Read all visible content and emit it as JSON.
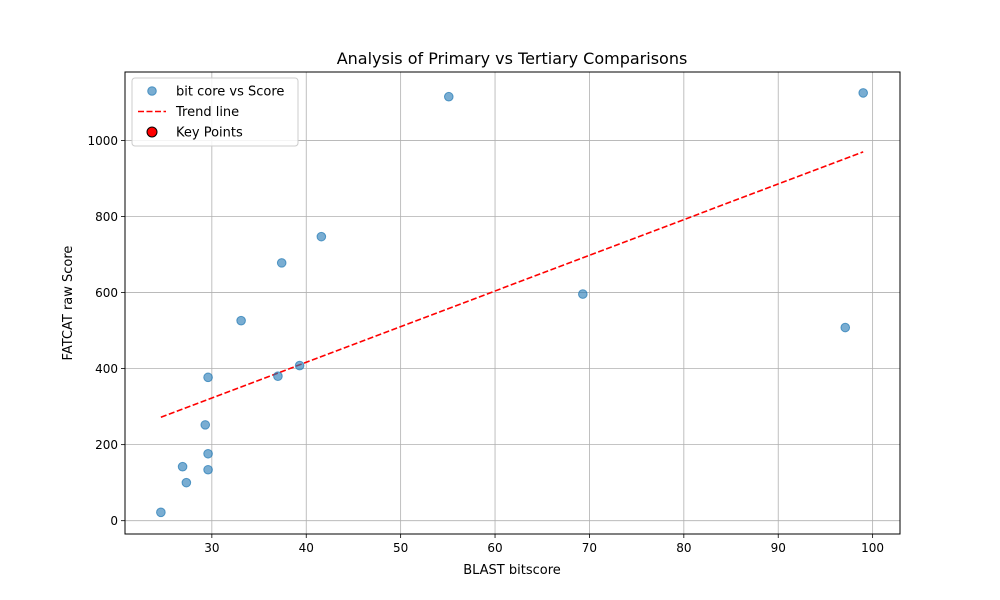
{
  "chart_data": {
    "type": "scatter",
    "title": "Analysis of Primary vs Tertiary Comparisons",
    "xlabel": "BLAST bitscore",
    "ylabel": "FATCAT raw Score",
    "xlim": [
      20.8,
      102.9
    ],
    "ylim": [
      -35,
      1180
    ],
    "xticks": [
      30,
      40,
      50,
      60,
      70,
      80,
      90,
      100
    ],
    "yticks": [
      0,
      200,
      400,
      600,
      800,
      1000
    ],
    "grid": true,
    "legend_position": "upper-left",
    "colors": {
      "points": "#1f77b4",
      "trend": "#ff0000",
      "key_points_fill": "#ff0000",
      "key_points_edge": "#000000",
      "grid": "#b0b0b0"
    },
    "series": [
      {
        "name": "bit core vs Score",
        "kind": "scatter",
        "points": [
          [
            24.6,
            22
          ],
          [
            26.9,
            142
          ],
          [
            27.3,
            100
          ],
          [
            29.3,
            252
          ],
          [
            29.6,
            176
          ],
          [
            29.6,
            377
          ],
          [
            29.6,
            134
          ],
          [
            33.1,
            526
          ],
          [
            37.0,
            380
          ],
          [
            37.4,
            678
          ],
          [
            39.3,
            408
          ],
          [
            41.6,
            747
          ],
          [
            55.1,
            1115
          ],
          [
            69.3,
            596
          ],
          [
            97.1,
            508
          ],
          [
            99.0,
            1125
          ]
        ]
      },
      {
        "name": "Trend line",
        "kind": "line",
        "style": "dashed",
        "points": [
          [
            24.6,
            272
          ],
          [
            99.0,
            970
          ]
        ]
      },
      {
        "name": "Key Points",
        "kind": "scatter",
        "points": []
      }
    ]
  }
}
